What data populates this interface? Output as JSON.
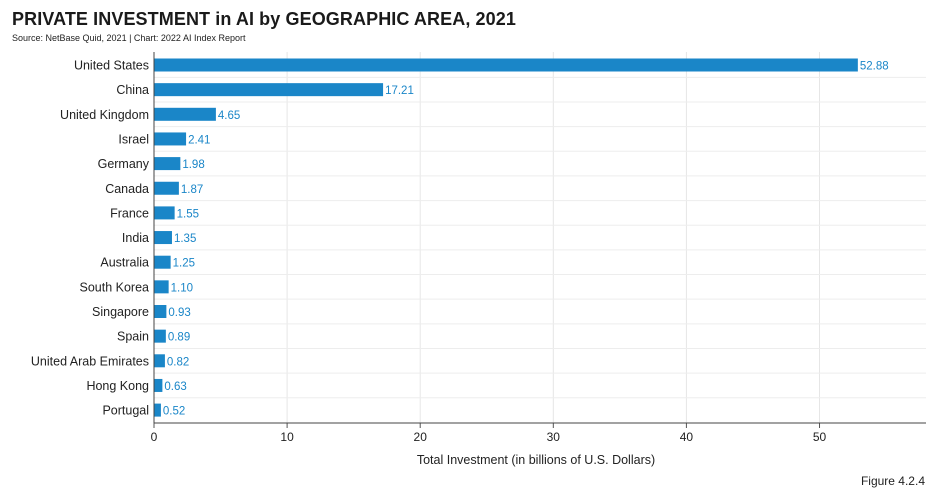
{
  "figure_number": "Figure 4.2.4",
  "chart_data": {
    "type": "bar",
    "orientation": "horizontal",
    "title": "PRIVATE INVESTMENT in AI by GEOGRAPHIC AREA, 2021",
    "subtitle": "Source: NetBase Quid, 2021 | Chart: 2022 AI Index Report",
    "xlabel": "Total Investment (in billions of U.S. Dollars)",
    "ylabel": "",
    "xlim": [
      0,
      58
    ],
    "xticks": [
      0,
      10,
      20,
      30,
      40,
      50
    ],
    "grid": true,
    "bar_color": "#1a86c8",
    "categories": [
      "United States",
      "China",
      "United Kingdom",
      "Israel",
      "Germany",
      "Canada",
      "France",
      "India",
      "Australia",
      "South Korea",
      "Singapore",
      "Spain",
      "United Arab Emirates",
      "Hong Kong",
      "Portugal"
    ],
    "values": [
      52.88,
      17.21,
      4.65,
      2.41,
      1.98,
      1.87,
      1.55,
      1.35,
      1.25,
      1.1,
      0.93,
      0.89,
      0.82,
      0.63,
      0.52
    ],
    "value_labels": [
      "52.88",
      "17.21",
      "4.65",
      "2.41",
      "1.98",
      "1.87",
      "1.55",
      "1.35",
      "1.25",
      "1.10",
      "0.93",
      "0.89",
      "0.82",
      "0.63",
      "0.52"
    ]
  }
}
